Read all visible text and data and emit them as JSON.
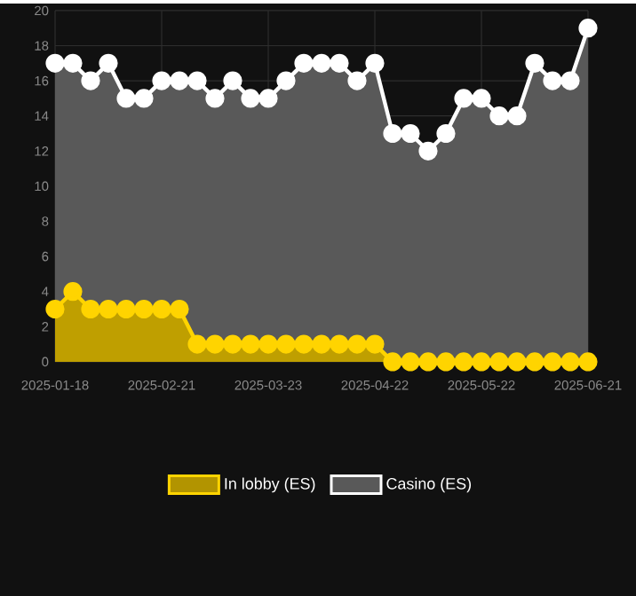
{
  "chart_data": {
    "type": "area",
    "categories": [
      "2025-01-18",
      null,
      null,
      null,
      null,
      null,
      "2025-02-21",
      null,
      null,
      null,
      null,
      null,
      "2025-03-23",
      null,
      null,
      null,
      null,
      null,
      "2025-04-22",
      null,
      null,
      null,
      null,
      null,
      "2025-05-22",
      null,
      null,
      null,
      null,
      null,
      "2025-06-21"
    ],
    "series": [
      {
        "name": "In lobby (ES)",
        "color": "#ffd400",
        "values": [
          3,
          4,
          3,
          3,
          3,
          3,
          3,
          3,
          1,
          1,
          1,
          1,
          1,
          1,
          1,
          1,
          1,
          1,
          1,
          0,
          0,
          0,
          0,
          0,
          0,
          0,
          0,
          0,
          0,
          0,
          0
        ]
      },
      {
        "name": "Casino (ES)",
        "color": "#ffffff",
        "values": [
          17,
          17,
          16,
          17,
          15,
          15,
          16,
          16,
          16,
          15,
          16,
          15,
          15,
          16,
          17,
          17,
          17,
          16,
          17,
          13,
          13,
          12,
          13,
          15,
          15,
          14,
          14,
          17,
          16,
          16,
          19
        ]
      }
    ],
    "ylim": [
      0,
      20
    ],
    "yticks": [
      0,
      2,
      4,
      6,
      8,
      10,
      12,
      14,
      16,
      18,
      20
    ],
    "grid": true,
    "legend": "bottom",
    "marker": "circle",
    "line_style": "solid"
  }
}
